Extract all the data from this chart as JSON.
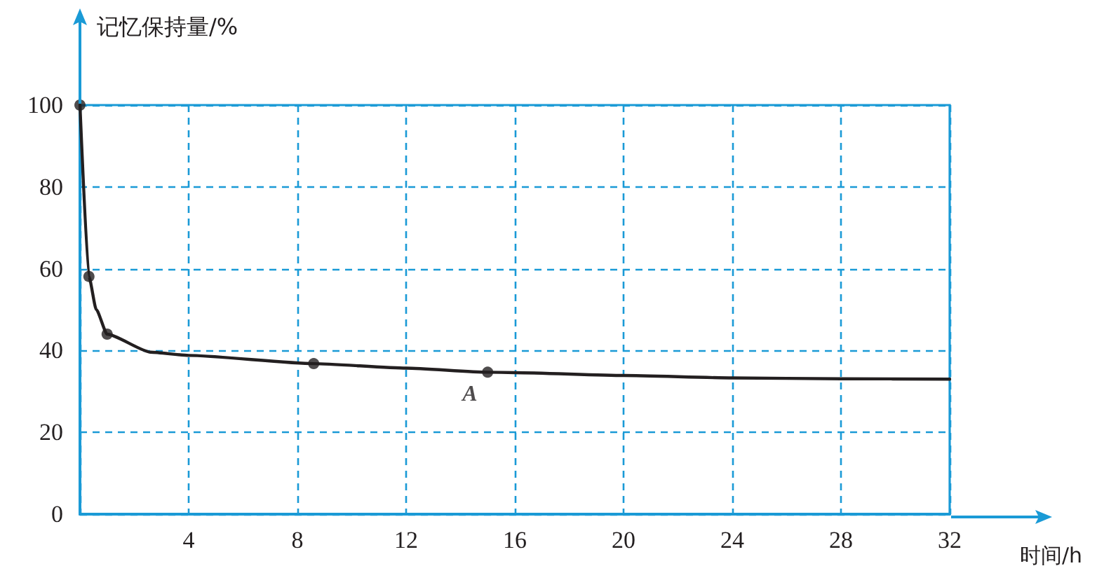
{
  "chart_data": {
    "type": "line",
    "xlabel": "时间/h",
    "ylabel": "记忆保持量/%",
    "xlim": [
      0,
      32
    ],
    "ylim": [
      0,
      100
    ],
    "xticks": [
      {
        "value": 0,
        "label": null
      },
      4,
      8,
      12,
      16,
      20,
      24,
      28,
      32
    ],
    "yticks": [
      0,
      20,
      40,
      60,
      80,
      100
    ],
    "grid": true,
    "line_style": "solid",
    "marker": "none",
    "series": [
      {
        "type": "line",
        "color": "#231f20",
        "x": [
          0,
          0.33,
          0.6,
          1,
          2.6,
          4,
          8.6,
          12,
          15,
          16,
          20,
          24,
          28,
          32
        ],
        "values": [
          100,
          58.1,
          50,
          44,
          39.6,
          38.8,
          36.8,
          35.7,
          34.7,
          34.6,
          33.9,
          33.3,
          33.1,
          33
        ]
      },
      {
        "type": "scatter",
        "color": "#231f20",
        "marker": "circle",
        "x": [
          0,
          0.33,
          1,
          8.6,
          15
        ],
        "values": [
          100,
          58.1,
          44,
          36.8,
          34.7
        ]
      }
    ],
    "annotations": [
      {
        "text": "A",
        "x": 15,
        "y": 34.7
      }
    ]
  }
}
